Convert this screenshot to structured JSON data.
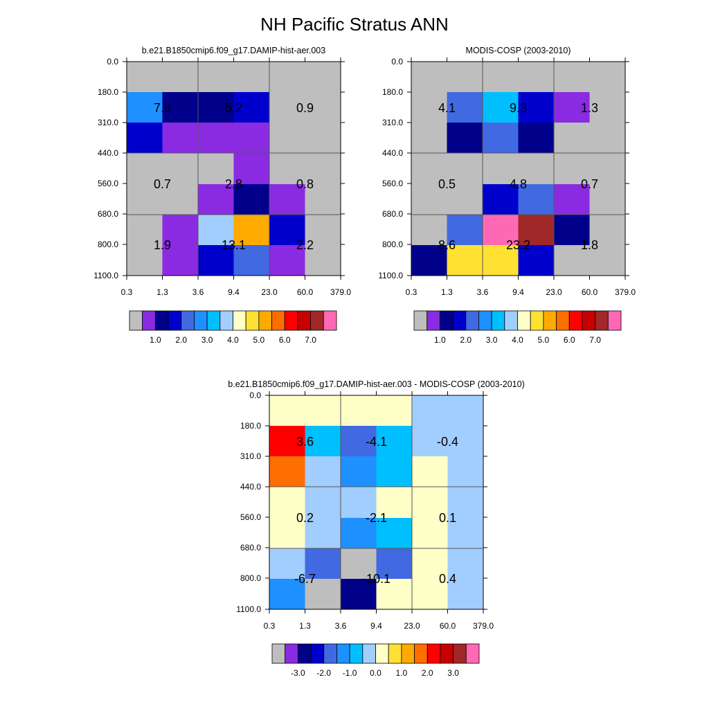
{
  "title": "NH Pacific Stratus ANN",
  "colors": {
    "abs_palette": [
      "#bebebe",
      "#8a2be2",
      "#00008b",
      "#0000cd",
      "#4169e1",
      "#1e90ff",
      "#00bfff",
      "#a2cdff",
      "#ffffc8",
      "#ffe133",
      "#ffaa00",
      "#ff6e00",
      "#ff0000",
      "#c80000",
      "#a02828",
      "#ff69b4"
    ],
    "diff_palette": [
      "#bebebe",
      "#8a2be2",
      "#00008b",
      "#0000cd",
      "#4169e1",
      "#1e90ff",
      "#00bfff",
      "#a2cdff",
      "#ffffc8",
      "#ffe133",
      "#ffaa00",
      "#ff6e00",
      "#ff0000",
      "#c80000",
      "#a02828",
      "#ff69b4"
    ]
  },
  "chart_data": [
    {
      "type": "heatmap",
      "title": "b.e21.B1850cmip6.f09_g17.DAMIP-hist-aer.003",
      "x_ticks": [
        "0.3",
        "1.3",
        "3.6",
        "9.4",
        "23.0",
        "60.0",
        "379.0"
      ],
      "y_ticks": [
        "0.0",
        "180.0",
        "310.0",
        "440.0",
        "560.0",
        "680.0",
        "800.0",
        "1100.0"
      ],
      "cell_color_index": [
        [
          0,
          0,
          0,
          0,
          0,
          0
        ],
        [
          5,
          2,
          2,
          3,
          0,
          0
        ],
        [
          3,
          1,
          1,
          1,
          0,
          0
        ],
        [
          0,
          0,
          0,
          1,
          0,
          0
        ],
        [
          0,
          0,
          1,
          2,
          1,
          0
        ],
        [
          0,
          1,
          7,
          10,
          3,
          0
        ],
        [
          0,
          1,
          3,
          4,
          1,
          0
        ]
      ],
      "group_values": [
        [
          "7.8",
          "5.2",
          "0.9"
        ],
        [
          "0.7",
          "2.8",
          "0.8"
        ],
        [
          "1.9",
          "13.1",
          "2.2"
        ]
      ],
      "colorbar_labels": [
        "1.0",
        "2.0",
        "3.0",
        "4.0",
        "5.0",
        "6.0",
        "7.0"
      ]
    },
    {
      "type": "heatmap",
      "title": "MODIS-COSP (2003-2010)",
      "x_ticks": [
        "0.3",
        "1.3",
        "3.6",
        "9.4",
        "23.0",
        "60.0",
        "379.0"
      ],
      "y_ticks": [
        "0.0",
        "180.0",
        "310.0",
        "440.0",
        "560.0",
        "680.0",
        "800.0",
        "1100.0"
      ],
      "cell_color_index": [
        [
          0,
          0,
          0,
          0,
          0,
          0
        ],
        [
          0,
          4,
          6,
          3,
          1,
          0
        ],
        [
          0,
          2,
          4,
          2,
          0,
          0
        ],
        [
          0,
          0,
          0,
          0,
          0,
          0
        ],
        [
          0,
          0,
          3,
          4,
          1,
          0
        ],
        [
          0,
          4,
          15,
          14,
          2,
          0
        ],
        [
          2,
          9,
          9,
          3,
          0,
          0
        ]
      ],
      "group_values": [
        [
          "4.1",
          "9.3",
          "1.3"
        ],
        [
          "0.5",
          "4.8",
          "0.7"
        ],
        [
          "8.6",
          "23.2",
          "1.8"
        ]
      ],
      "colorbar_labels": [
        "1.0",
        "2.0",
        "3.0",
        "4.0",
        "5.0",
        "6.0",
        "7.0"
      ]
    },
    {
      "type": "heatmap",
      "title": "b.e21.B1850cmip6.f09_g17.DAMIP-hist-aer.003 - MODIS-COSP (2003-2010)",
      "x_ticks": [
        "0.3",
        "1.3",
        "3.6",
        "9.4",
        "23.0",
        "60.0",
        "379.0"
      ],
      "y_ticks": [
        "0.0",
        "180.0",
        "310.0",
        "440.0",
        "560.0",
        "680.0",
        "800.0",
        "1100.0"
      ],
      "cell_color_index": [
        [
          8,
          8,
          8,
          8,
          7,
          7
        ],
        [
          12,
          6,
          4,
          6,
          7,
          7
        ],
        [
          11,
          7,
          5,
          6,
          8,
          7
        ],
        [
          8,
          7,
          7,
          8,
          8,
          7
        ],
        [
          8,
          7,
          5,
          6,
          8,
          7
        ],
        [
          7,
          4,
          0,
          4,
          8,
          7
        ],
        [
          5,
          0,
          2,
          8,
          8,
          7
        ]
      ],
      "group_values": [
        [
          "3.6",
          "-4.1",
          "-0.4"
        ],
        [
          "0.2",
          "-2.1",
          "0.1"
        ],
        [
          "-6.7",
          "-10.1",
          "0.4"
        ]
      ],
      "colorbar_labels": [
        "-3.0",
        "-2.0",
        "-1.0",
        "0.0",
        "1.0",
        "2.0",
        "3.0"
      ]
    }
  ]
}
